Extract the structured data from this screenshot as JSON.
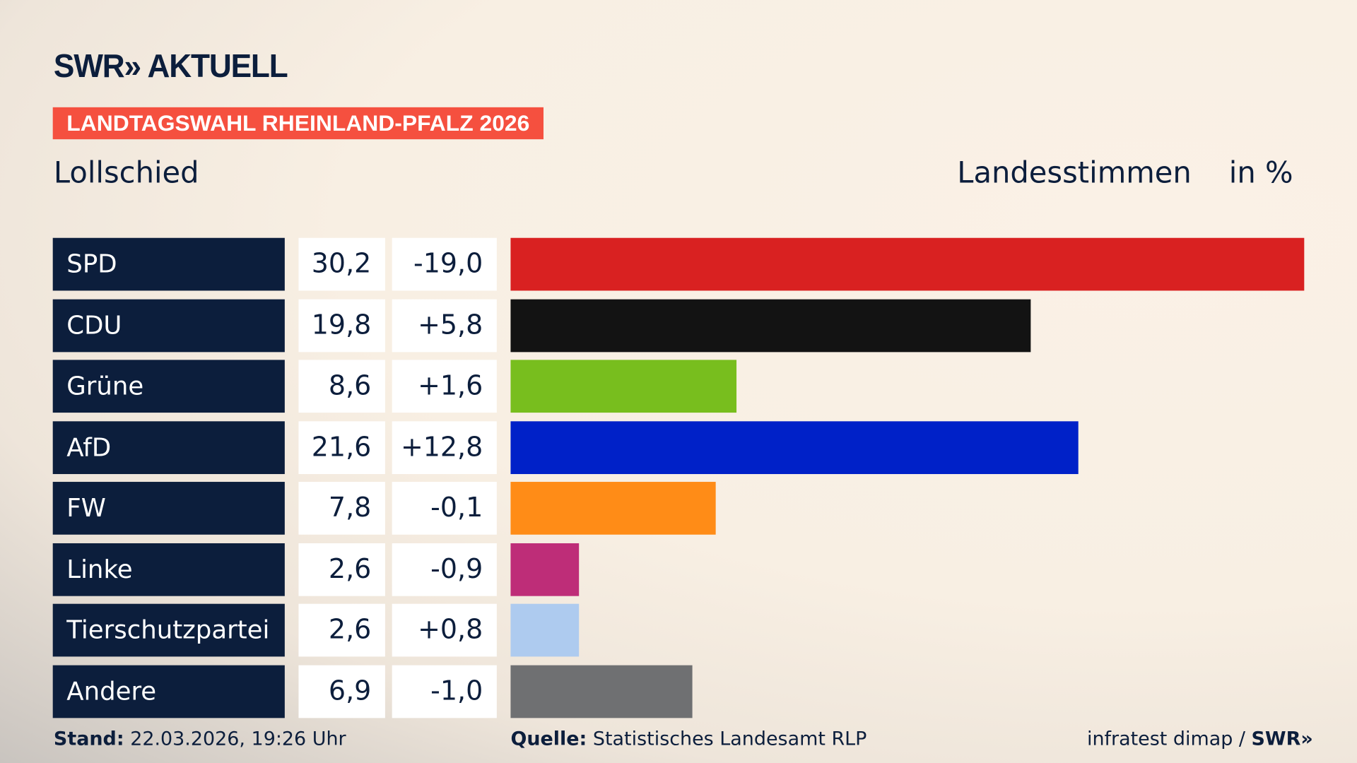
{
  "brand": {
    "logo": "SWR» AKTUELL"
  },
  "kicker": "LANDTAGSWAHL RHEINLAND-PFALZ 2026",
  "place": "Lollschied",
  "vote_type": "Landesstimmen",
  "unit": "in %",
  "chart_data": {
    "type": "bar",
    "orientation": "horizontal",
    "categories": [
      "SPD",
      "CDU",
      "Grüne",
      "AfD",
      "FW",
      "Linke",
      "Tierschutzpartei",
      "Andere"
    ],
    "values": [
      30.2,
      19.8,
      8.6,
      21.6,
      7.8,
      2.6,
      2.6,
      6.9
    ],
    "value_labels": [
      "30,2",
      "19,8",
      "8,6",
      "21,6",
      "7,8",
      "2,6",
      "2,6",
      "6,9"
    ],
    "change_labels": [
      "-19,0",
      "+5,8",
      "+1,6",
      "+12,8",
      "-0,1",
      "-0,9",
      "+0,8",
      "-1,0"
    ],
    "changes": [
      -19.0,
      5.8,
      1.6,
      12.8,
      -0.1,
      -0.9,
      0.8,
      -1.0
    ],
    "colors": [
      "#d92121",
      "#131313",
      "#78be1e",
      "#0021c8",
      "#ff8c17",
      "#be2d78",
      "#aecbef",
      "#6f7072"
    ]
  },
  "footer": {
    "stand_label": "Stand:",
    "stand_value": "22.03.2026, 19:26 Uhr",
    "source_label": "Quelle:",
    "source_value": "Statistisches Landesamt RLP",
    "credit": "infratest dimap / ",
    "credit_logo": "SWR»"
  }
}
